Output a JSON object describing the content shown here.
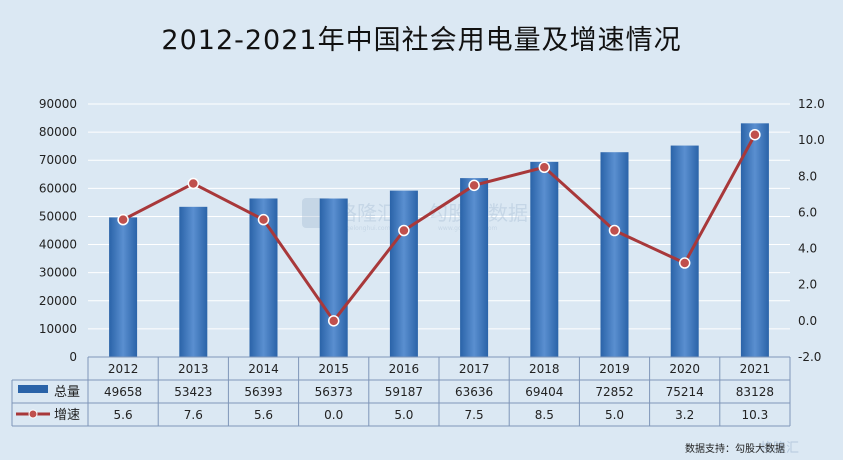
{
  "title": "2012-2021年中国社会用电量及增速情况",
  "source": "数据支持：勾股大数据",
  "watermark": {
    "left": "格隆汇",
    "left_sub": "gelonghui.com",
    "right": "勾股大数据",
    "right_sub": "www.gogudata.com",
    "corner": "格隆汇"
  },
  "colors": {
    "bar": "#2a63a8",
    "bar_light": "#5a8fd0",
    "line": "#a8383a",
    "marker": "#c0504d",
    "grid": "#ffffff",
    "table_border": "#7f96b8"
  },
  "chart_data": {
    "type": "bar+line",
    "categories": [
      "2012",
      "2013",
      "2014",
      "2015",
      "2016",
      "2017",
      "2018",
      "2019",
      "2020",
      "2021"
    ],
    "series": [
      {
        "name": "总量",
        "type": "bar",
        "axis": "left",
        "values": [
          49658,
          53423,
          56393,
          56373,
          59187,
          63636,
          69404,
          72852,
          75214,
          83128
        ],
        "labels": [
          "49658",
          "53423",
          "56393",
          "56373",
          "59187",
          "63636",
          "69404",
          "72852",
          "75214",
          "83128"
        ]
      },
      {
        "name": "增速",
        "type": "line",
        "axis": "right",
        "values": [
          5.6,
          7.6,
          5.6,
          0.0,
          5.0,
          7.5,
          8.5,
          5.0,
          3.2,
          10.3
        ],
        "labels": [
          "5.6",
          "7.6",
          "5.6",
          "0.0",
          "5.0",
          "7.5",
          "8.5",
          "5.0",
          "3.2",
          "10.3"
        ]
      }
    ],
    "y_left": {
      "min": 0,
      "max": 90000,
      "step": 10000,
      "ticks": [
        "0",
        "10000",
        "20000",
        "30000",
        "40000",
        "50000",
        "60000",
        "70000",
        "80000",
        "90000"
      ]
    },
    "y_right": {
      "min": -2,
      "max": 12,
      "step": 2,
      "ticks": [
        "-2.0",
        "0.0",
        "2.0",
        "4.0",
        "6.0",
        "8.0",
        "10.0",
        "12.0"
      ]
    },
    "grid": true,
    "legend": "data-table-below"
  }
}
